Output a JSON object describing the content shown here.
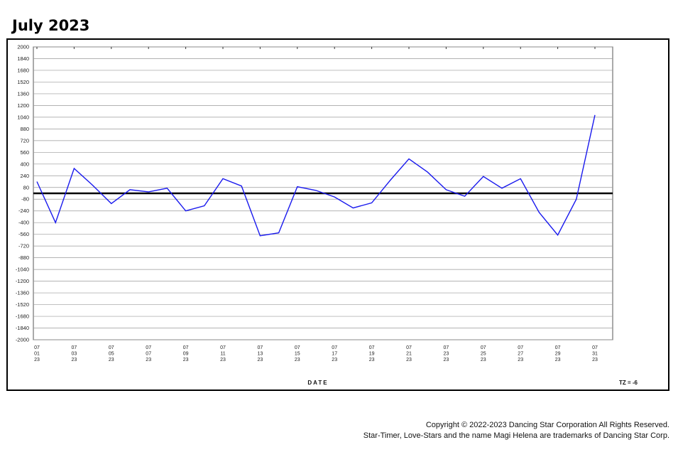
{
  "page": {
    "title": "July 2023",
    "copyright_line1": "Copyright © 2022-2023 Dancing Star Corporation  All Rights Reserved.",
    "copyright_line2": "Star-Timer, Love-Stars and the name Magi Helena are trademarks of Dancing Star Corp."
  },
  "chart_data": {
    "type": "line",
    "title": "July 2023",
    "xlabel": "DATE",
    "ylabel": "",
    "tz_label": "TZ = -6",
    "ylim": [
      -2000,
      2000
    ],
    "yticks": [
      2000,
      1840,
      1680,
      1520,
      1360,
      1200,
      1040,
      880,
      720,
      560,
      400,
      240,
      80,
      -80,
      -240,
      -400,
      -560,
      -720,
      -880,
      -1040,
      -1200,
      -1360,
      -1520,
      -1680,
      -1840,
      -2000
    ],
    "grid": true,
    "x_tick_labels": [
      [
        "07",
        "01",
        "23"
      ],
      [
        "07",
        "03",
        "23"
      ],
      [
        "07",
        "05",
        "23"
      ],
      [
        "07",
        "07",
        "23"
      ],
      [
        "07",
        "09",
        "23"
      ],
      [
        "07",
        "11",
        "23"
      ],
      [
        "07",
        "13",
        "23"
      ],
      [
        "07",
        "15",
        "23"
      ],
      [
        "07",
        "17",
        "23"
      ],
      [
        "07",
        "19",
        "23"
      ],
      [
        "07",
        "21",
        "23"
      ],
      [
        "07",
        "23",
        "23"
      ],
      [
        "07",
        "25",
        "23"
      ],
      [
        "07",
        "27",
        "23"
      ],
      [
        "07",
        "29",
        "23"
      ],
      [
        "07",
        "31",
        "23"
      ]
    ],
    "baseline": 0,
    "colors": {
      "series": "#1a1aee",
      "baseline": "#000000",
      "grid": "#9a9a9a"
    },
    "series": [
      {
        "x": [
          "07/01/23",
          "07/02/23",
          "07/03/23",
          "07/04/23",
          "07/05/23",
          "07/06/23",
          "07/07/23",
          "07/08/23",
          "07/09/23",
          "07/10/23",
          "07/11/23",
          "07/12/23",
          "07/13/23",
          "07/14/23",
          "07/15/23",
          "07/16/23",
          "07/17/23",
          "07/18/23",
          "07/19/23",
          "07/20/23",
          "07/21/23",
          "07/22/23",
          "07/23/23",
          "07/24/23",
          "07/25/23",
          "07/26/23",
          "07/27/23",
          "07/28/23",
          "07/29/23",
          "07/30/23",
          "07/31/23"
        ],
        "values": [
          160,
          -400,
          340,
          110,
          -140,
          50,
          20,
          70,
          -240,
          -170,
          200,
          100,
          -580,
          -540,
          90,
          40,
          -50,
          -200,
          -130,
          180,
          470,
          290,
          50,
          -40,
          230,
          70,
          200,
          -260,
          -570,
          -80,
          1070
        ]
      }
    ]
  }
}
